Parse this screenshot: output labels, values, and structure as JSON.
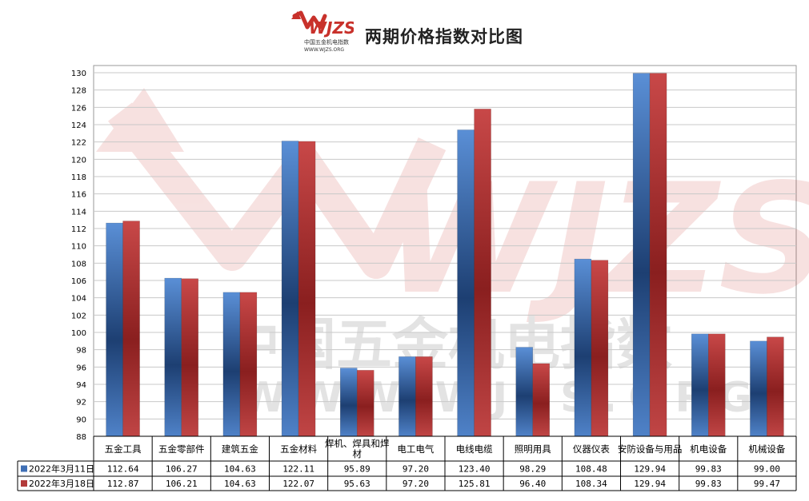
{
  "title": "两期价格指数对比图",
  "logo": {
    "text": "WJZS",
    "subtext": "中国五金机电指数",
    "url": "WWW.WJZS.ORG"
  },
  "watermark": {
    "main": "WJZS",
    "cn": "中国五金机电指数",
    "url": "WWW.WJZS.ORG"
  },
  "colors": {
    "series1": "#3f6fb5",
    "series2": "#b23a3a",
    "logo_red": "#c8312b"
  },
  "chart_data": {
    "type": "bar",
    "title": "两期价格指数对比图",
    "categories": [
      "五金工具",
      "五金零部件",
      "建筑五金",
      "五金材料",
      "焊机、焊具和焊材",
      "电工电气",
      "电线电缆",
      "照明用具",
      "仪器仪表",
      "安防设备与用品",
      "机电设备",
      "机械设备"
    ],
    "series": [
      {
        "name": "2022年3月11日",
        "values": [
          112.64,
          106.27,
          104.63,
          122.11,
          95.89,
          97.2,
          123.4,
          98.29,
          108.48,
          129.94,
          99.83,
          99.0
        ],
        "labels": [
          "112.64",
          "106.27",
          "104.63",
          "122.11",
          "95.89",
          "97.20",
          "123.40",
          "98.29",
          "108.48",
          "129.94",
          "99.83",
          "99.00"
        ]
      },
      {
        "name": "2022年3月18日",
        "values": [
          112.87,
          106.21,
          104.63,
          122.07,
          95.63,
          97.2,
          125.81,
          96.4,
          108.34,
          129.94,
          99.83,
          99.47
        ],
        "labels": [
          "112.87",
          "106.21",
          "104.63",
          "122.07",
          "95.63",
          "97.20",
          "125.81",
          "96.40",
          "108.34",
          "129.94",
          "99.83",
          "99.47"
        ]
      }
    ],
    "ylim": [
      88,
      130
    ],
    "ytick_step": 2,
    "grid": true,
    "legend": "data-table-left"
  }
}
